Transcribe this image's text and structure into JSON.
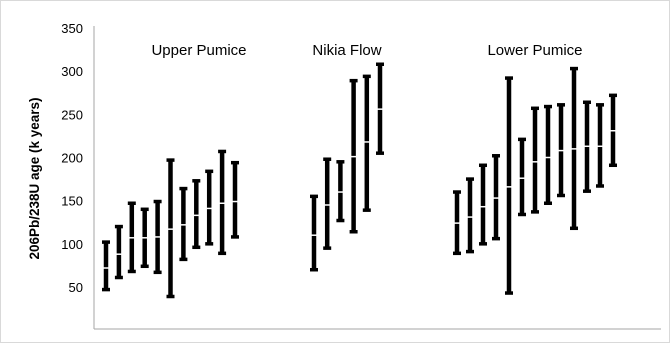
{
  "chart_data": {
    "type": "error-bar",
    "ylabel": "206Pb/238U age (k years)",
    "ylim": [
      0,
      350
    ],
    "yticks": [
      50,
      100,
      150,
      200,
      250,
      300,
      350
    ],
    "ytick_labels": [
      "50",
      "100",
      "150",
      "200",
      "250",
      "300",
      "350"
    ],
    "grid": false,
    "groups": [
      {
        "label": "Upper Pumice",
        "points": [
          {
            "low": 47,
            "mid": 72,
            "high": 102
          },
          {
            "low": 61,
            "mid": 88,
            "high": 120
          },
          {
            "low": 68,
            "mid": 107,
            "high": 147
          },
          {
            "low": 74,
            "mid": 107,
            "high": 140
          },
          {
            "low": 67,
            "mid": 108,
            "high": 149
          },
          {
            "low": 39,
            "mid": 117,
            "high": 197
          },
          {
            "low": 82,
            "mid": 122,
            "high": 164
          },
          {
            "low": 96,
            "mid": 133,
            "high": 173
          },
          {
            "low": 100,
            "mid": 141,
            "high": 184
          },
          {
            "low": 89,
            "mid": 147,
            "high": 207
          },
          {
            "low": 108,
            "mid": 149,
            "high": 194
          }
        ]
      },
      {
        "label": "Nikia Flow",
        "points": [
          {
            "low": 70,
            "mid": 110,
            "high": 155
          },
          {
            "low": 95,
            "mid": 145,
            "high": 198
          },
          {
            "low": 127,
            "mid": 160,
            "high": 195
          },
          {
            "low": 114,
            "mid": 201,
            "high": 289
          },
          {
            "low": 139,
            "mid": 218,
            "high": 294
          },
          {
            "low": 205,
            "mid": 256,
            "high": 308
          }
        ]
      },
      {
        "label": "Lower Pumice",
        "points": [
          {
            "low": 89,
            "mid": 124,
            "high": 160
          },
          {
            "low": 91,
            "mid": 131,
            "high": 175
          },
          {
            "low": 100,
            "mid": 143,
            "high": 191
          },
          {
            "low": 106,
            "mid": 153,
            "high": 202
          },
          {
            "low": 43,
            "mid": 166,
            "high": 292
          },
          {
            "low": 134,
            "mid": 176,
            "high": 221
          },
          {
            "low": 137,
            "mid": 195,
            "high": 257
          },
          {
            "low": 147,
            "mid": 200,
            "high": 259
          },
          {
            "low": 156,
            "mid": 208,
            "high": 261
          },
          {
            "low": 118,
            "mid": 210,
            "high": 303
          },
          {
            "low": 161,
            "mid": 213,
            "high": 264
          },
          {
            "low": 167,
            "mid": 213,
            "high": 261
          },
          {
            "low": 191,
            "mid": 231,
            "high": 272
          }
        ]
      }
    ],
    "colors": {
      "bar": "#000000",
      "midpoint": "#ffffff",
      "axis": "#a6a6a6"
    }
  }
}
